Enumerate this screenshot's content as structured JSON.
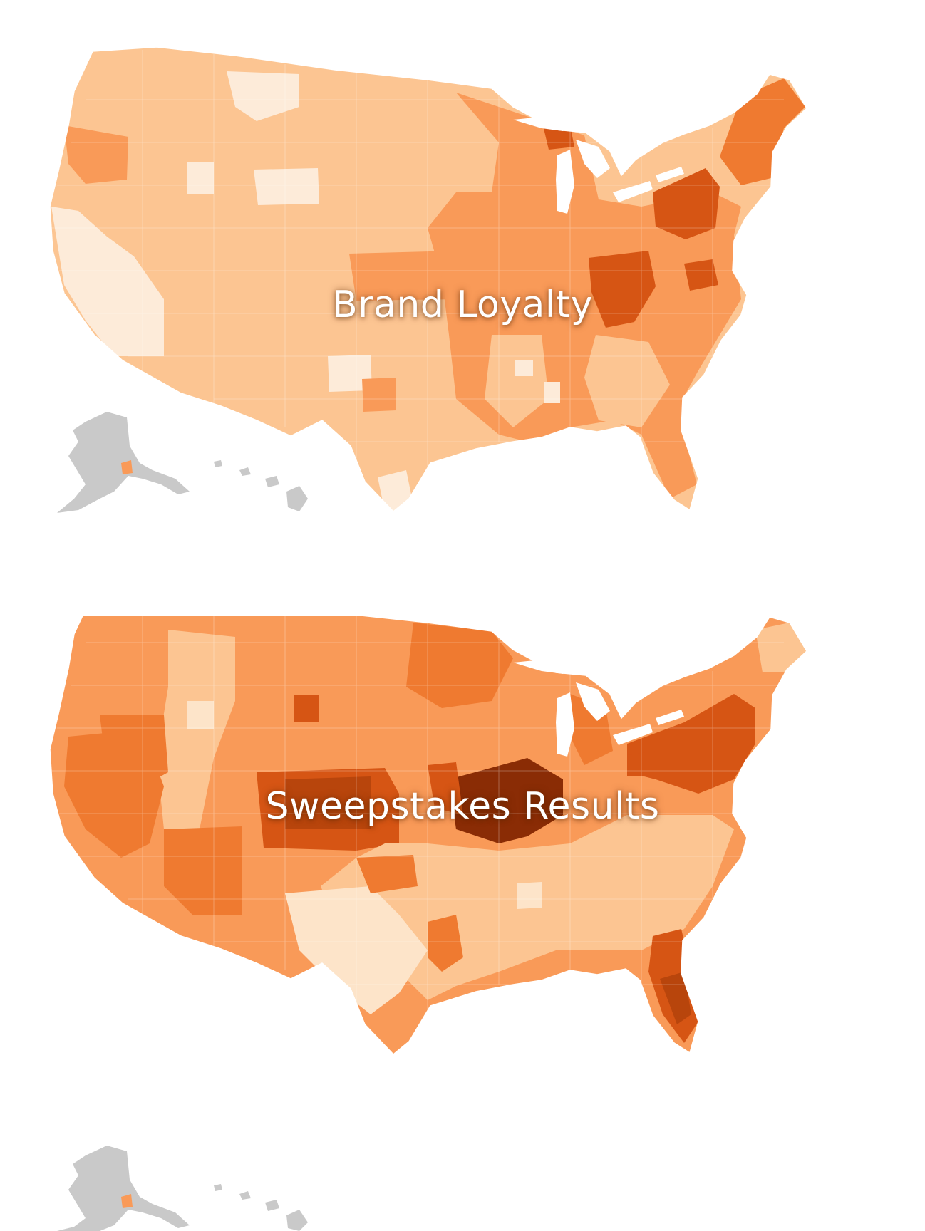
{
  "maps": [
    {
      "title": "Brand Loyalty",
      "palette": {
        "very_light": "#fdebd9",
        "light": "#fcc592",
        "medium": "#f99a58",
        "strong": "#ef7a30",
        "dark": "#d65514",
        "darkest": "#9c3808",
        "no_data": "#c9c9c9"
      },
      "intensity": {
        "west": "light",
        "northwest_coast": "medium",
        "california": "very_light",
        "great_plains": "light",
        "upper_midwest": "medium",
        "midwest": "medium",
        "ohio_valley": "dark",
        "northeast": "strong",
        "mid_atlantic": "dark",
        "south": "light",
        "southeast": "medium",
        "florida": "strong",
        "texas": "light",
        "alaska": "no_data",
        "hawaii": "no_data"
      }
    },
    {
      "title": "Sweepstakes Results",
      "palette": {
        "very_light": "#fde4c9",
        "light": "#fcc592",
        "medium": "#f99a58",
        "strong": "#ef7a30",
        "dark": "#d65514",
        "darkest": "#8a2c05",
        "no_data": "#c9c9c9"
      },
      "intensity": {
        "west_coast": "strong",
        "california": "medium",
        "southwest": "strong",
        "intermountain": "light",
        "great_plains": "medium",
        "central_plains": "dark",
        "midwest": "medium",
        "indiana_ohio": "darkest",
        "northeast": "dark",
        "south": "light",
        "texas": "light",
        "florida": "dark",
        "alaska": "no_data",
        "hawaii": "no_data"
      }
    }
  ]
}
